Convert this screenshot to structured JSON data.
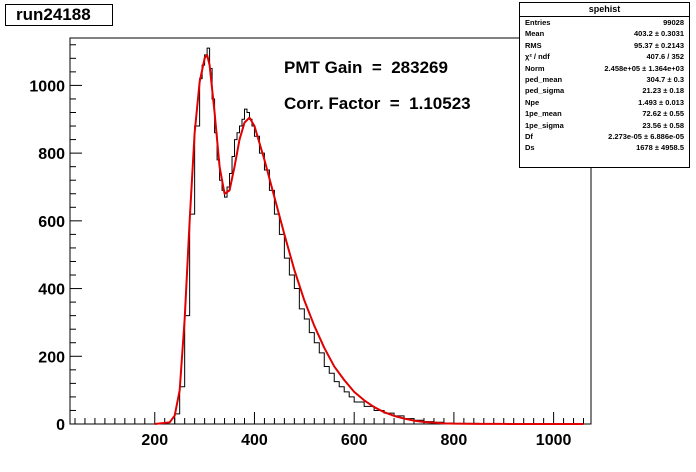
{
  "title": "run24188",
  "annotations": {
    "gain_label": "PMT Gain  =  283269",
    "corr_label": "Corr. Factor  =  1.10523"
  },
  "stats_box": {
    "title": "spehist",
    "rows": [
      {
        "name": "Entries",
        "value": "99028"
      },
      {
        "name": "Mean",
        "value": "403.2 ± 0.3031"
      },
      {
        "name": "RMS",
        "value": "95.37 ± 0.2143"
      },
      {
        "name": "χ² / ndf",
        "value": "407.6 / 352"
      },
      {
        "name": "Norm",
        "value": "2.458e+05 ± 1.364e+03"
      },
      {
        "name": "ped_mean",
        "value": "304.7 ± 0.3"
      },
      {
        "name": "ped_sigma",
        "value": "21.23 ± 0.18"
      },
      {
        "name": "Npe",
        "value": "1.493 ± 0.013"
      },
      {
        "name": "1pe_mean",
        "value": "72.62 ± 0.55"
      },
      {
        "name": "1pe_sigma",
        "value": "23.56 ± 0.58"
      },
      {
        "name": "Df",
        "value": "2.273e-05 ± 6.886e-05"
      },
      {
        "name": "Ds",
        "value": "1678 ± 4958.5"
      }
    ]
  },
  "colors": {
    "histogram": "#000000",
    "fit": "#e00000"
  },
  "chart_data": {
    "type": "line",
    "title": "run24188",
    "xlabel": "",
    "ylabel": "",
    "xlim": [
      30,
      1075
    ],
    "ylim": [
      0,
      1140
    ],
    "x_ticks": [
      200,
      400,
      600,
      800,
      1000
    ],
    "y_ticks": [
      0,
      200,
      400,
      600,
      800,
      1000
    ],
    "grid": false,
    "series": [
      {
        "style": "histogram",
        "x": [
          200,
          225,
          240,
          250,
          260,
          270,
          280,
          290,
          295,
          300,
          305,
          310,
          315,
          320,
          325,
          330,
          335,
          340,
          345,
          350,
          355,
          360,
          365,
          370,
          375,
          380,
          385,
          390,
          395,
          400,
          410,
          420,
          430,
          440,
          450,
          460,
          470,
          480,
          490,
          500,
          510,
          520,
          530,
          540,
          550,
          560,
          570,
          580,
          590,
          600,
          620,
          640,
          660,
          680,
          700,
          720,
          740,
          760,
          780,
          800,
          850,
          900,
          1000,
          1060
        ],
        "y": [
          0,
          0,
          30,
          110,
          320,
          620,
          880,
          1020,
          1060,
          1090,
          1110,
          1050,
          960,
          860,
          780,
          720,
          690,
          670,
          700,
          740,
          790,
          840,
          860,
          880,
          900,
          930,
          920,
          900,
          880,
          850,
          800,
          750,
          690,
          620,
          560,
          490,
          440,
          400,
          340,
          310,
          270,
          240,
          210,
          170,
          150,
          125,
          110,
          95,
          80,
          65,
          52,
          40,
          32,
          24,
          16,
          11,
          7,
          5,
          3,
          2,
          1,
          0,
          0,
          0
        ]
      },
      {
        "style": "fit",
        "x": [
          200,
          230,
          240,
          250,
          260,
          270,
          280,
          290,
          300,
          305,
          310,
          320,
          330,
          340,
          350,
          360,
          370,
          380,
          390,
          400,
          420,
          440,
          460,
          480,
          500,
          520,
          540,
          560,
          580,
          600,
          620,
          640,
          660,
          680,
          700,
          720,
          740,
          760,
          780,
          800,
          850,
          900,
          1000,
          1060
        ],
        "y": [
          0,
          5,
          25,
          100,
          310,
          600,
          860,
          1010,
          1080,
          1090,
          1060,
          920,
          760,
          680,
          690,
          760,
          840,
          890,
          905,
          880,
          780,
          670,
          560,
          455,
          365,
          290,
          225,
          170,
          130,
          95,
          70,
          50,
          35,
          24,
          16,
          10,
          6,
          4,
          2,
          1,
          0.5,
          0.2,
          0,
          0
        ]
      }
    ]
  }
}
